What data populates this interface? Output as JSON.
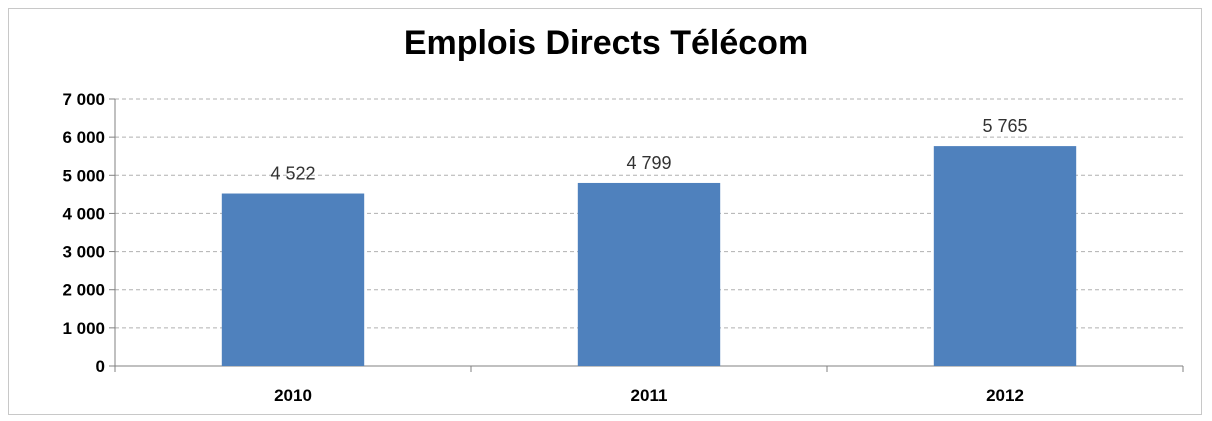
{
  "chart_data": {
    "type": "bar",
    "title": "Emplois Directs Télécom",
    "categories": [
      "2010",
      "2011",
      "2012"
    ],
    "values": [
      4522,
      4799,
      5765
    ],
    "data_labels": [
      "4 522",
      "4 799",
      "5 765"
    ],
    "yticks": [
      0,
      1000,
      2000,
      3000,
      4000,
      5000,
      6000,
      7000
    ],
    "ytick_labels": [
      "0",
      "1 000",
      "2 000",
      "3 000",
      "4 000",
      "5 000",
      "6 000",
      "7 000"
    ],
    "ylim": [
      0,
      7000
    ],
    "grid": true,
    "legend": "none",
    "xlabel": "",
    "ylabel": "",
    "bar_color": "#4f81bd",
    "grid_color": "#b0b0b0"
  }
}
